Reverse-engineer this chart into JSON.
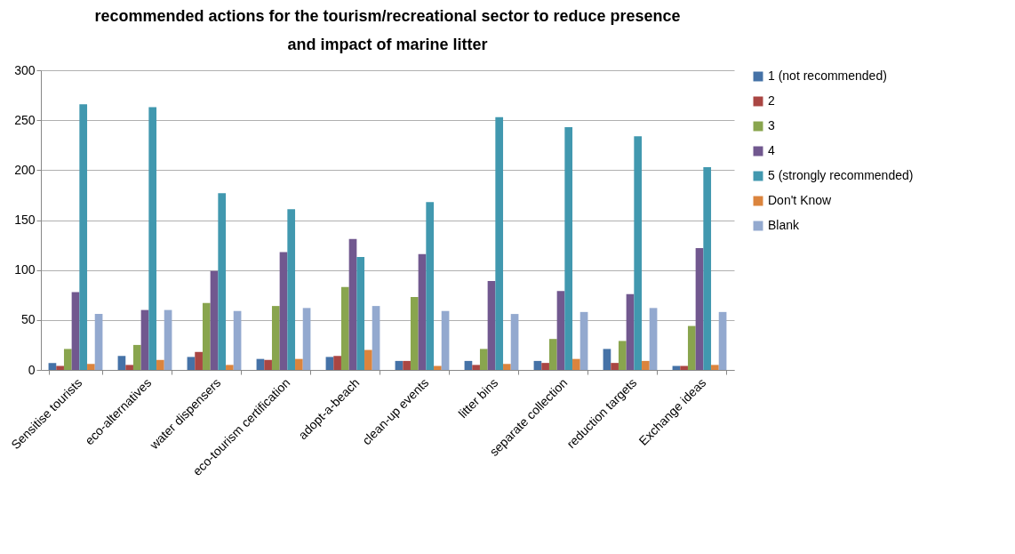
{
  "chart_data": {
    "type": "bar",
    "title": "recommended actions for the tourism/recreational sector to reduce presence and impact of marine litter",
    "categories": [
      "Sensitise tourists",
      "eco-alternatives",
      "water dispensers",
      "eco-tourism certification",
      "adopt-a-beach",
      "clean-up events",
      "litter bins",
      "separate collection",
      "reduction targets",
      "Exchange ideas"
    ],
    "series": [
      {
        "name": "1 (not recommended)",
        "color": "#4572a7",
        "values": [
          7,
          14,
          13,
          11,
          13,
          9,
          9,
          9,
          21,
          4
        ]
      },
      {
        "name": "2",
        "color": "#aa4643",
        "values": [
          4,
          5,
          18,
          10,
          14,
          9,
          5,
          7,
          7,
          4
        ]
      },
      {
        "name": "3",
        "color": "#89a54e",
        "values": [
          21,
          25,
          67,
          64,
          83,
          73,
          21,
          31,
          29,
          44
        ]
      },
      {
        "name": "4",
        "color": "#71588f",
        "values": [
          78,
          60,
          99,
          118,
          131,
          116,
          89,
          79,
          76,
          122
        ]
      },
      {
        "name": "5 (strongly recommended)",
        "color": "#4198af",
        "values": [
          266,
          263,
          177,
          161,
          113,
          168,
          253,
          243,
          234,
          203
        ]
      },
      {
        "name": "Don't Know",
        "color": "#db843d",
        "values": [
          6,
          10,
          5,
          11,
          20,
          4,
          6,
          11,
          9,
          5
        ]
      },
      {
        "name": "Blank",
        "color": "#93a9cf",
        "values": [
          56,
          60,
          59,
          62,
          64,
          59,
          56,
          58,
          62,
          58
        ]
      }
    ],
    "ylim": [
      0,
      300
    ],
    "yticks": [
      0,
      50,
      100,
      150,
      200,
      250,
      300
    ],
    "grid": "y",
    "legend": "right"
  }
}
